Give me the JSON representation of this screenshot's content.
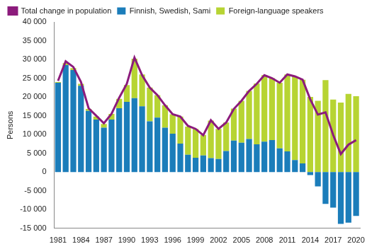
{
  "chart_data": {
    "type": "bar",
    "stacked": true,
    "grid": false,
    "legend": "top",
    "y_label": "Persons",
    "categories": [
      "1981",
      null,
      null,
      "1984",
      null,
      null,
      "1987",
      null,
      null,
      "1990",
      null,
      null,
      "1993",
      null,
      null,
      "1996",
      null,
      null,
      "1999",
      null,
      null,
      "2002",
      null,
      null,
      "2005",
      null,
      null,
      "2008",
      null,
      null,
      "2011",
      null,
      null,
      "2014",
      null,
      null,
      "2017",
      null,
      null,
      "2020"
    ],
    "series": [
      {
        "name": "Finnish, Swedish, Sami",
        "type": "bar",
        "color": "#1b7dba",
        "values": [
          23800,
          28500,
          27200,
          23000,
          16300,
          14000,
          11800,
          14000,
          17000,
          18700,
          19700,
          17500,
          13500,
          14500,
          11800,
          10200,
          7600,
          4600,
          3800,
          4400,
          3700,
          3500,
          5600,
          8400,
          7800,
          8800,
          7400,
          8100,
          8500,
          6300,
          5500,
          3200,
          2300,
          -800,
          -3800,
          -8500,
          -9500,
          -13800,
          -13500,
          -11700
        ]
      },
      {
        "name": "Foreign-language speakers",
        "type": "bar",
        "color": "#b7d433",
        "values": [
          200,
          500,
          500,
          500,
          500,
          800,
          1000,
          1500,
          2500,
          4500,
          10500,
          8500,
          9000,
          6000,
          6000,
          5200,
          7200,
          7500,
          7700,
          5500,
          10000,
          8000,
          7600,
          8500,
          11200,
          12800,
          16200,
          17700,
          16500,
          17500,
          20500,
          22300,
          22300,
          20000,
          19000,
          24500,
          19300,
          18500,
          20800,
          20200
        ]
      },
      {
        "name": "Total change in population",
        "type": "line",
        "color": "#8c1b7c",
        "values": [
          24300,
          29500,
          28000,
          24000,
          17000,
          15000,
          13000,
          15500,
          19800,
          23500,
          30500,
          25800,
          22500,
          20500,
          17800,
          15400,
          14800,
          12300,
          11500,
          9800,
          13800,
          11500,
          13200,
          16800,
          19000,
          21600,
          23500,
          25800,
          25000,
          23800,
          26000,
          25500,
          24600,
          19400,
          15300,
          15900,
          9900,
          4800,
          7300,
          8500
        ]
      }
    ],
    "ylim": [
      -15000,
      40000
    ],
    "yticks": [
      {
        "value": -15000,
        "label": "-15 000"
      },
      {
        "value": -10000,
        "label": "-10 000"
      },
      {
        "value": -5000,
        "label": "-5 000"
      },
      0,
      {
        "value": 5000,
        "label": "5 000"
      },
      {
        "value": 10000,
        "label": "10 000"
      },
      {
        "value": 15000,
        "label": "15 000"
      },
      {
        "value": 20000,
        "label": "20 000"
      },
      {
        "value": 25000,
        "label": "25 000"
      },
      {
        "value": 30000,
        "label": "30 000"
      },
      {
        "value": 35000,
        "label": "35 000"
      },
      {
        "value": 40000,
        "label": "40 000"
      }
    ]
  }
}
